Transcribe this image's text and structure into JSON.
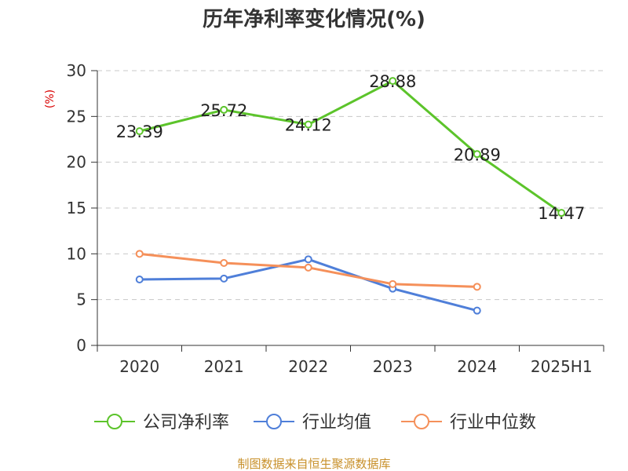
{
  "chart_data": {
    "type": "line",
    "title": "历年净利率变化情况(%)",
    "ylabel": "(%)",
    "xlabel": "",
    "categories": [
      "2020",
      "2021",
      "2022",
      "2023",
      "2024",
      "2025H1"
    ],
    "ylim": [
      0,
      30
    ],
    "yticks": [
      0,
      5,
      10,
      15,
      20,
      25,
      30
    ],
    "grid": "horizontal-dashed",
    "legend_position": "bottom",
    "series": [
      {
        "name": "公司净利率",
        "color": "#5cc42b",
        "values": [
          23.39,
          25.72,
          24.12,
          28.88,
          20.89,
          14.47
        ],
        "labels": [
          "23.39",
          "25.72",
          "24.12",
          "28.88",
          "20.89",
          "14.47"
        ]
      },
      {
        "name": "行业均值",
        "color": "#4f7fd9",
        "values": [
          7.2,
          7.3,
          9.4,
          6.2,
          3.8,
          null
        ]
      },
      {
        "name": "行业中位数",
        "color": "#f5905a",
        "values": [
          10.0,
          9.0,
          8.5,
          6.7,
          6.4,
          null
        ]
      }
    ],
    "source": "制图数据来自恒生聚源数据库"
  }
}
